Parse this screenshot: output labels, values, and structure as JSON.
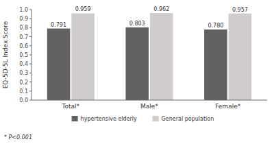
{
  "chart_data": {
    "type": "bar",
    "categories": [
      "Total*",
      "Male*",
      "Female*"
    ],
    "series": [
      {
        "name": "hypertensive elderly",
        "color": "#636060",
        "values": [
          0.791,
          0.803,
          0.78
        ],
        "value_labels": [
          "0.791",
          "0.803",
          "0.780"
        ]
      },
      {
        "name": "General population",
        "color": "#d0cccc",
        "values": [
          0.959,
          0.962,
          0.957
        ],
        "value_labels": [
          "0.959",
          "0.962",
          "0.957"
        ]
      }
    ],
    "ylabel": "EQ-5D-5L Index Score",
    "ylim": [
      0,
      1.0
    ],
    "yticks": [
      {
        "value": 0,
        "label": "0.0"
      },
      0.1,
      0.2,
      0.3,
      0.4,
      0.5,
      0.6,
      0.7,
      0.8,
      0.9,
      {
        "value": 1,
        "label": "1.0"
      }
    ],
    "annotations": [
      "* P<0.001"
    ],
    "data_labels": true,
    "grid": false,
    "legend": "bottom"
  }
}
